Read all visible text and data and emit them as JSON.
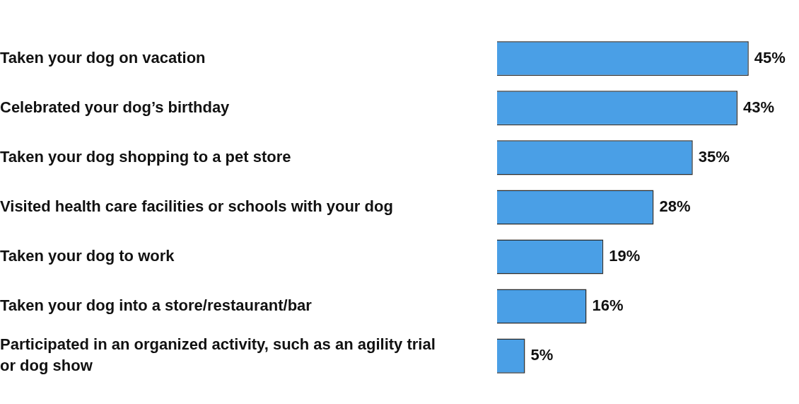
{
  "chart_data": {
    "type": "bar",
    "orientation": "horizontal",
    "categories": [
      "Taken your dog on vacation",
      "Celebrated your dog’s birthday",
      "Taken your dog shopping to a pet store",
      "Visited health care facilities or schools with your dog",
      "Taken your dog to work",
      "Taken your dog into a store/restaurant/bar",
      "Participated in an organized activity, such as an agility trial or dog show"
    ],
    "values": [
      45,
      43,
      35,
      28,
      19,
      16,
      5
    ],
    "value_labels": [
      "45%",
      "43%",
      "35%",
      "28%",
      "19%",
      "16%",
      "5%"
    ],
    "color": "#4a9fe6",
    "grid": false,
    "legend": false
  }
}
